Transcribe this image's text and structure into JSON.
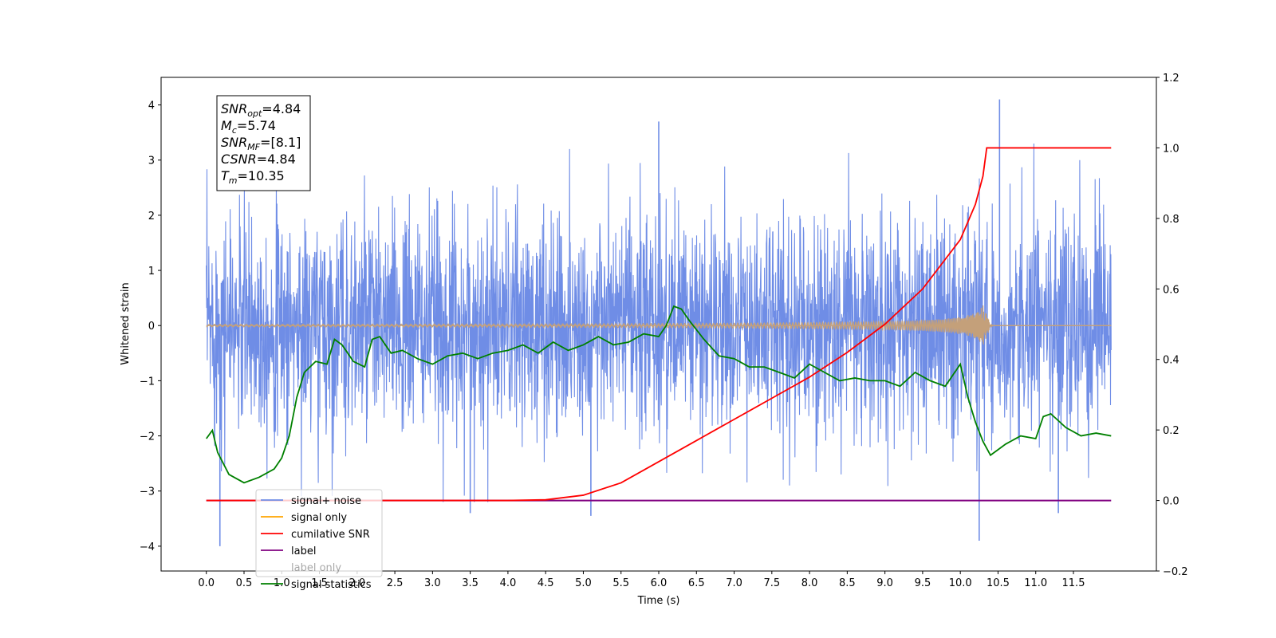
{
  "chart_data": {
    "type": "line",
    "xlabel": "Time (s)",
    "ylabel": "Whitened strain",
    "xlim": [
      -0.6,
      12.6
    ],
    "ylim": [
      -4.45,
      4.5
    ],
    "y2lim": [
      -0.2,
      1.2
    ],
    "x_ticks": [
      0.0,
      0.5,
      1.0,
      1.5,
      2.0,
      2.5,
      3.0,
      3.5,
      4.0,
      4.5,
      5.0,
      5.5,
      6.0,
      6.5,
      7.0,
      7.5,
      8.0,
      8.5,
      9.0,
      9.5,
      10.0,
      10.5,
      11.0,
      11.5
    ],
    "x_tick_labels": [
      "0.0",
      "0.5",
      "1.0",
      "1.5",
      "2.0",
      "2.5",
      "3.0",
      "3.5",
      "4.0",
      "4.5",
      "5.0",
      "5.5",
      "6.0",
      "6.5",
      "7.0",
      "7.5",
      "8.0",
      "8.5",
      "9.0",
      "9.5",
      "10.0",
      "10.5",
      "11.0",
      "11.5"
    ],
    "y_ticks": [
      -4,
      -3,
      -2,
      -1,
      0,
      1,
      2,
      3,
      4
    ],
    "y_tick_labels": [
      "−4",
      "−3",
      "−2",
      "−1",
      "0",
      "1",
      "2",
      "3",
      "4"
    ],
    "y2_ticks": [
      -0.2,
      0.0,
      0.2,
      0.4,
      0.6,
      0.8,
      1.0,
      1.2
    ],
    "y2_tick_labels": [
      "−0.2",
      "0.0",
      "0.2",
      "0.4",
      "0.6",
      "0.8",
      "1.0",
      "1.2"
    ],
    "info_box": [
      {
        "main": "SNR",
        "sub": "opt",
        "rest": "=4.84"
      },
      {
        "main": "M",
        "sub": "c",
        "rest": "=5.74"
      },
      {
        "main": "SNR",
        "sub": "MF",
        "rest": "=[8.1]"
      },
      {
        "main": "CSNR",
        "sub": "",
        "rest": "=4.84"
      },
      {
        "main": "T",
        "sub": "m",
        "rest": "=10.35"
      }
    ],
    "legend": {
      "placement": "lower-left",
      "entries": [
        "signal+ noise",
        "signal only",
        "cumilative SNR",
        "label",
        "label only",
        "signal statistics"
      ]
    },
    "colors": {
      "noise": "#6f8de6",
      "signal": "#ffa500",
      "signal_overlay": "#c4a07a",
      "cumulative_snr": "#ff0000",
      "label": "#800080",
      "statistics": "#008000"
    },
    "series": [
      {
        "name": "signal+ noise",
        "axis": "left",
        "style": "dense random noise band",
        "x_range": [
          0.0,
          12.0
        ],
        "approx_std": 1.0,
        "spikes": [
          {
            "x": 0.18,
            "y": -4.0
          },
          {
            "x": 6.0,
            "y": 3.7
          },
          {
            "x": 10.25,
            "y": -3.9
          },
          {
            "x": 10.52,
            "y": 4.1
          },
          {
            "x": 3.5,
            "y": -3.4
          },
          {
            "x": 5.1,
            "y": -3.45
          },
          {
            "x": 11.3,
            "y": -3.4
          }
        ]
      },
      {
        "name": "signal only",
        "axis": "left",
        "style": "chirp",
        "x_range": [
          0.0,
          12.0
        ],
        "merger_time": 10.35,
        "peak_amplitude": 0.55
      },
      {
        "name": "cumilative SNR",
        "axis": "right",
        "x": [
          0.0,
          4.0,
          4.5,
          5.0,
          5.5,
          6.0,
          6.5,
          7.0,
          7.5,
          8.0,
          8.5,
          9.0,
          9.5,
          10.0,
          10.2,
          10.3,
          10.35,
          12.0
        ],
        "values": [
          0.0,
          0.0,
          0.002,
          0.015,
          0.05,
          0.11,
          0.17,
          0.23,
          0.29,
          0.35,
          0.42,
          0.5,
          0.6,
          0.74,
          0.84,
          0.92,
          1.0,
          1.0
        ]
      },
      {
        "name": "label",
        "axis": "right",
        "x": [
          0.0,
          12.0
        ],
        "values": [
          0.0,
          0.0
        ]
      },
      {
        "name": "signal statistics",
        "axis": "left",
        "x": [
          0.0,
          0.08,
          0.15,
          0.3,
          0.5,
          0.7,
          0.9,
          1.0,
          1.1,
          1.2,
          1.3,
          1.45,
          1.6,
          1.7,
          1.8,
          1.95,
          2.1,
          2.2,
          2.3,
          2.45,
          2.6,
          2.8,
          3.0,
          3.2,
          3.4,
          3.6,
          3.8,
          4.0,
          4.2,
          4.4,
          4.6,
          4.8,
          5.0,
          5.2,
          5.4,
          5.6,
          5.8,
          6.0,
          6.1,
          6.2,
          6.3,
          6.4,
          6.6,
          6.8,
          7.0,
          7.2,
          7.4,
          7.6,
          7.8,
          8.0,
          8.2,
          8.4,
          8.6,
          8.8,
          9.0,
          9.2,
          9.4,
          9.6,
          9.8,
          10.0,
          10.1,
          10.2,
          10.3,
          10.4,
          10.5,
          10.6,
          10.8,
          11.0,
          11.1,
          11.2,
          11.4,
          11.6,
          11.8,
          12.0
        ],
        "values": [
          -2.05,
          -1.9,
          -2.3,
          -2.7,
          -2.85,
          -2.75,
          -2.6,
          -2.4,
          -2.0,
          -1.3,
          -0.85,
          -0.65,
          -0.7,
          -0.25,
          -0.35,
          -0.65,
          -0.75,
          -0.25,
          -0.2,
          -0.5,
          -0.45,
          -0.6,
          -0.7,
          -0.55,
          -0.5,
          -0.6,
          -0.5,
          -0.45,
          -0.35,
          -0.5,
          -0.3,
          -0.45,
          -0.35,
          -0.2,
          -0.35,
          -0.3,
          -0.15,
          -0.2,
          0.0,
          0.35,
          0.3,
          0.1,
          -0.25,
          -0.55,
          -0.6,
          -0.75,
          -0.75,
          -0.85,
          -0.95,
          -0.7,
          -0.85,
          -1.0,
          -0.95,
          -1.0,
          -1.0,
          -1.1,
          -0.85,
          -1.0,
          -1.1,
          -0.7,
          -1.3,
          -1.75,
          -2.1,
          -2.35,
          -2.25,
          -2.15,
          -2.0,
          -2.05,
          -1.65,
          -1.6,
          -1.85,
          -2.0,
          -1.95,
          -2.0
        ]
      }
    ]
  }
}
